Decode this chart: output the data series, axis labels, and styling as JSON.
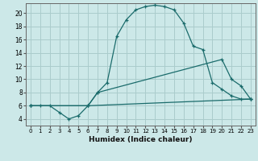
{
  "title": "",
  "xlabel": "Humidex (Indice chaleur)",
  "bg_color": "#cce8e8",
  "grid_color": "#aacccc",
  "line_color": "#1a6b6b",
  "xlim": [
    -0.5,
    23.5
  ],
  "ylim": [
    3.0,
    21.5
  ],
  "xticks": [
    0,
    1,
    2,
    3,
    4,
    5,
    6,
    7,
    8,
    9,
    10,
    11,
    12,
    13,
    14,
    15,
    16,
    17,
    18,
    19,
    20,
    21,
    22,
    23
  ],
  "yticks": [
    4,
    6,
    8,
    10,
    12,
    14,
    16,
    18,
    20
  ],
  "line1_x": [
    0,
    1,
    2,
    3,
    4,
    5,
    6,
    7,
    8,
    9,
    10,
    11,
    12,
    13,
    14,
    15,
    16,
    17,
    18,
    19,
    20,
    21,
    22,
    23
  ],
  "line1_y": [
    6,
    6,
    6,
    5,
    4,
    4.5,
    6,
    8,
    9.5,
    16.5,
    19,
    20.5,
    21,
    21.2,
    21,
    20.5,
    18.5,
    15,
    14.5,
    9.5,
    8.5,
    7.5,
    7,
    7
  ],
  "line2_x": [
    0,
    6,
    7,
    20,
    21,
    22,
    23
  ],
  "line2_y": [
    6,
    6,
    8,
    13,
    10,
    9,
    7
  ],
  "line3_x": [
    0,
    6,
    23
  ],
  "line3_y": [
    6,
    6,
    7
  ]
}
